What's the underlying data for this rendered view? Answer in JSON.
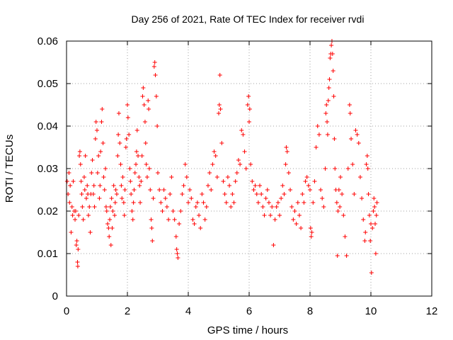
{
  "chart_data": {
    "type": "scatter",
    "title": "Day 256 of 2021, Rate Of TEC Index for receiver rvdi",
    "xlabel": "GPS time / hours",
    "ylabel": "ROTI / TECUs",
    "xlim": [
      0,
      12
    ],
    "ylim": [
      0,
      0.06
    ],
    "x_ticks": [
      "0",
      "2",
      "4",
      "6",
      "8",
      "10",
      "12"
    ],
    "y_ticks": [
      "0",
      "0.01",
      "0.02",
      "0.03",
      "0.04",
      "0.05",
      "0.06"
    ],
    "grid": true,
    "marker": "+",
    "color": "#ff0000",
    "series": [
      {
        "name": "ROTI",
        "points": [
          [
            0.02,
            0.027
          ],
          [
            0.05,
            0.024
          ],
          [
            0.08,
            0.029
          ],
          [
            0.1,
            0.022
          ],
          [
            0.12,
            0.026
          ],
          [
            0.15,
            0.015
          ],
          [
            0.18,
            0.021
          ],
          [
            0.2,
            0.019
          ],
          [
            0.22,
            0.027
          ],
          [
            0.25,
            0.02
          ],
          [
            0.28,
            0.018
          ],
          [
            0.3,
            0.02
          ],
          [
            0.32,
            0.012
          ],
          [
            0.34,
            0.013
          ],
          [
            0.36,
            0.008
          ],
          [
            0.37,
            0.007
          ],
          [
            0.38,
            0.011
          ],
          [
            0.4,
            0.019
          ],
          [
            0.42,
            0.033
          ],
          [
            0.44,
            0.034
          ],
          [
            0.46,
            0.031
          ],
          [
            0.48,
            0.027
          ],
          [
            0.5,
            0.024
          ],
          [
            0.52,
            0.021
          ],
          [
            0.55,
            0.018
          ],
          [
            0.58,
            0.028
          ],
          [
            0.6,
            0.025
          ],
          [
            0.62,
            0.033
          ],
          [
            0.65,
            0.023
          ],
          [
            0.68,
            0.026
          ],
          [
            0.7,
            0.024
          ],
          [
            0.72,
            0.019
          ],
          [
            0.75,
            0.021
          ],
          [
            0.78,
            0.015
          ],
          [
            0.8,
            0.024
          ],
          [
            0.82,
            0.029
          ],
          [
            0.85,
            0.032
          ],
          [
            0.88,
            0.024
          ],
          [
            0.9,
            0.026
          ],
          [
            0.92,
            0.021
          ],
          [
            0.95,
            0.037
          ],
          [
            0.97,
            0.041
          ],
          [
            1.0,
            0.039
          ],
          [
            1.02,
            0.029
          ],
          [
            1.05,
            0.033
          ],
          [
            1.08,
            0.023
          ],
          [
            1.1,
            0.026
          ],
          [
            1.12,
            0.034
          ],
          [
            1.15,
            0.041
          ],
          [
            1.17,
            0.044
          ],
          [
            1.2,
            0.036
          ],
          [
            1.22,
            0.028
          ],
          [
            1.25,
            0.025
          ],
          [
            1.28,
            0.03
          ],
          [
            1.3,
            0.021
          ],
          [
            1.32,
            0.02
          ],
          [
            1.35,
            0.017
          ],
          [
            1.38,
            0.016
          ],
          [
            1.4,
            0.014
          ],
          [
            1.42,
            0.018
          ],
          [
            1.44,
            0.021
          ],
          [
            1.46,
            0.012
          ],
          [
            1.48,
            0.023
          ],
          [
            1.5,
            0.016
          ],
          [
            1.52,
            0.02
          ],
          [
            1.55,
            0.026
          ],
          [
            1.58,
            0.019
          ],
          [
            1.6,
            0.022
          ],
          [
            1.62,
            0.025
          ],
          [
            1.65,
            0.024
          ],
          [
            1.68,
            0.033
          ],
          [
            1.7,
            0.038
          ],
          [
            1.72,
            0.043
          ],
          [
            1.75,
            0.036
          ],
          [
            1.78,
            0.031
          ],
          [
            1.8,
            0.026
          ],
          [
            1.82,
            0.023
          ],
          [
            1.85,
            0.028
          ],
          [
            1.88,
            0.022
          ],
          [
            1.9,
            0.019
          ],
          [
            1.92,
            0.025
          ],
          [
            1.95,
            0.035
          ],
          [
            1.97,
            0.037
          ],
          [
            2.0,
            0.045
          ],
          [
            2.02,
            0.042
          ],
          [
            2.05,
            0.038
          ],
          [
            2.08,
            0.03
          ],
          [
            2.1,
            0.027
          ],
          [
            2.12,
            0.024
          ],
          [
            2.15,
            0.02
          ],
          [
            2.18,
            0.018
          ],
          [
            2.2,
            0.022
          ],
          [
            2.22,
            0.025
          ],
          [
            2.25,
            0.029
          ],
          [
            2.28,
            0.031
          ],
          [
            2.3,
            0.034
          ],
          [
            2.32,
            0.039
          ],
          [
            2.35,
            0.033
          ],
          [
            2.38,
            0.028
          ],
          [
            2.4,
            0.026
          ],
          [
            2.42,
            0.022
          ],
          [
            2.45,
            0.027
          ],
          [
            2.48,
            0.033
          ],
          [
            2.5,
            0.047
          ],
          [
            2.52,
            0.049
          ],
          [
            2.55,
            0.045
          ],
          [
            2.58,
            0.041
          ],
          [
            2.6,
            0.036
          ],
          [
            2.62,
            0.031
          ],
          [
            2.65,
            0.028
          ],
          [
            2.68,
            0.046
          ],
          [
            2.7,
            0.044
          ],
          [
            2.72,
            0.03
          ],
          [
            2.75,
            0.025
          ],
          [
            2.78,
            0.018
          ],
          [
            2.8,
            0.016
          ],
          [
            2.82,
            0.013
          ],
          [
            2.85,
            0.023
          ],
          [
            2.88,
            0.054
          ],
          [
            2.9,
            0.055
          ],
          [
            2.92,
            0.052
          ],
          [
            2.95,
            0.047
          ],
          [
            2.98,
            0.04
          ],
          [
            3.0,
            0.029
          ],
          [
            3.05,
            0.025
          ],
          [
            3.1,
            0.022
          ],
          [
            3.15,
            0.02
          ],
          [
            3.2,
            0.025
          ],
          [
            3.25,
            0.023
          ],
          [
            3.3,
            0.021
          ],
          [
            3.35,
            0.018
          ],
          [
            3.4,
            0.024
          ],
          [
            3.45,
            0.028
          ],
          [
            3.5,
            0.02
          ],
          [
            3.55,
            0.018
          ],
          [
            3.6,
            0.014
          ],
          [
            3.62,
            0.011
          ],
          [
            3.64,
            0.01
          ],
          [
            3.66,
            0.009
          ],
          [
            3.7,
            0.017
          ],
          [
            3.75,
            0.02
          ],
          [
            3.8,
            0.024
          ],
          [
            3.85,
            0.026
          ],
          [
            3.9,
            0.031
          ],
          [
            3.95,
            0.028
          ],
          [
            4.0,
            0.022
          ],
          [
            4.05,
            0.025
          ],
          [
            4.1,
            0.023
          ],
          [
            4.15,
            0.018
          ],
          [
            4.2,
            0.017
          ],
          [
            4.25,
            0.021
          ],
          [
            4.3,
            0.022
          ],
          [
            4.35,
            0.019
          ],
          [
            4.4,
            0.016
          ],
          [
            4.45,
            0.024
          ],
          [
            4.5,
            0.022
          ],
          [
            4.55,
            0.018
          ],
          [
            4.6,
            0.021
          ],
          [
            4.65,
            0.026
          ],
          [
            4.7,
            0.029
          ],
          [
            4.75,
            0.025
          ],
          [
            4.8,
            0.031
          ],
          [
            4.85,
            0.034
          ],
          [
            4.9,
            0.033
          ],
          [
            4.95,
            0.028
          ],
          [
            5.0,
            0.043
          ],
          [
            5.02,
            0.045
          ],
          [
            5.04,
            0.052
          ],
          [
            5.06,
            0.044
          ],
          [
            5.1,
            0.036
          ],
          [
            5.15,
            0.027
          ],
          [
            5.2,
            0.024
          ],
          [
            5.25,
            0.022
          ],
          [
            5.3,
            0.028
          ],
          [
            5.35,
            0.026
          ],
          [
            5.4,
            0.021
          ],
          [
            5.45,
            0.024
          ],
          [
            5.5,
            0.022
          ],
          [
            5.55,
            0.027
          ],
          [
            5.6,
            0.029
          ],
          [
            5.65,
            0.032
          ],
          [
            5.7,
            0.031
          ],
          [
            5.75,
            0.039
          ],
          [
            5.8,
            0.038
          ],
          [
            5.85,
            0.034
          ],
          [
            5.9,
            0.03
          ],
          [
            5.95,
            0.045
          ],
          [
            5.98,
            0.047
          ],
          [
            6.0,
            0.041
          ],
          [
            6.02,
            0.044
          ],
          [
            6.05,
            0.031
          ],
          [
            6.1,
            0.027
          ],
          [
            6.15,
            0.025
          ],
          [
            6.2,
            0.026
          ],
          [
            6.25,
            0.024
          ],
          [
            6.3,
            0.022
          ],
          [
            6.35,
            0.026
          ],
          [
            6.4,
            0.024
          ],
          [
            6.45,
            0.021
          ],
          [
            6.5,
            0.019
          ],
          [
            6.55,
            0.023
          ],
          [
            6.6,
            0.025
          ],
          [
            6.65,
            0.022
          ],
          [
            6.7,
            0.019
          ],
          [
            6.75,
            0.021
          ],
          [
            6.8,
            0.012
          ],
          [
            6.85,
            0.018
          ],
          [
            6.9,
            0.021
          ],
          [
            6.95,
            0.022
          ],
          [
            7.0,
            0.019
          ],
          [
            7.05,
            0.023
          ],
          [
            7.1,
            0.026
          ],
          [
            7.15,
            0.024
          ],
          [
            7.2,
            0.031
          ],
          [
            7.22,
            0.035
          ],
          [
            7.25,
            0.034
          ],
          [
            7.3,
            0.029
          ],
          [
            7.35,
            0.025
          ],
          [
            7.4,
            0.021
          ],
          [
            7.45,
            0.018
          ],
          [
            7.5,
            0.02
          ],
          [
            7.55,
            0.017
          ],
          [
            7.6,
            0.022
          ],
          [
            7.65,
            0.019
          ],
          [
            7.7,
            0.016
          ],
          [
            7.75,
            0.024
          ],
          [
            7.8,
            0.022
          ],
          [
            7.85,
            0.027
          ],
          [
            7.9,
            0.028
          ],
          [
            7.95,
            0.026
          ],
          [
            8.0,
            0.025
          ],
          [
            8.02,
            0.016
          ],
          [
            8.04,
            0.014
          ],
          [
            8.06,
            0.015
          ],
          [
            8.1,
            0.022
          ],
          [
            8.15,
            0.027
          ],
          [
            8.2,
            0.035
          ],
          [
            8.25,
            0.04
          ],
          [
            8.3,
            0.038
          ],
          [
            8.35,
            0.025
          ],
          [
            8.4,
            0.023
          ],
          [
            8.45,
            0.021
          ],
          [
            8.5,
            0.03
          ],
          [
            8.52,
            0.043
          ],
          [
            8.54,
            0.045
          ],
          [
            8.56,
            0.041
          ],
          [
            8.58,
            0.038
          ],
          [
            8.6,
            0.046
          ],
          [
            8.62,
            0.049
          ],
          [
            8.64,
            0.051
          ],
          [
            8.66,
            0.056
          ],
          [
            8.68,
            0.057
          ],
          [
            8.7,
            0.059
          ],
          [
            8.72,
            0.06
          ],
          [
            8.74,
            0.057
          ],
          [
            8.76,
            0.053
          ],
          [
            8.78,
            0.047
          ],
          [
            8.8,
            0.037
          ],
          [
            8.82,
            0.03
          ],
          [
            8.85,
            0.025
          ],
          [
            8.88,
            0.022
          ],
          [
            8.9,
            0.0095
          ],
          [
            8.92,
            0.02
          ],
          [
            8.95,
            0.025
          ],
          [
            8.98,
            0.021
          ],
          [
            9.0,
            0.028
          ],
          [
            9.05,
            0.024
          ],
          [
            9.1,
            0.019
          ],
          [
            9.15,
            0.014
          ],
          [
            9.2,
            0.0095
          ],
          [
            9.25,
            0.03
          ],
          [
            9.3,
            0.045
          ],
          [
            9.32,
            0.043
          ],
          [
            9.35,
            0.037
          ],
          [
            9.4,
            0.031
          ],
          [
            9.45,
            0.024
          ],
          [
            9.5,
            0.039
          ],
          [
            9.55,
            0.038
          ],
          [
            9.6,
            0.036
          ],
          [
            9.65,
            0.028
          ],
          [
            9.7,
            0.023
          ],
          [
            9.75,
            0.018
          ],
          [
            9.8,
            0.013
          ],
          [
            9.82,
            0.015
          ],
          [
            9.85,
            0.031
          ],
          [
            9.88,
            0.033
          ],
          [
            9.9,
            0.03
          ],
          [
            9.92,
            0.024
          ],
          [
            9.95,
            0.019
          ],
          [
            9.98,
            0.013
          ],
          [
            10.0,
            0.017
          ],
          [
            10.02,
            0.0055
          ],
          [
            10.05,
            0.016
          ],
          [
            10.08,
            0.02
          ],
          [
            10.1,
            0.023
          ],
          [
            10.12,
            0.021
          ],
          [
            10.14,
            0.017
          ],
          [
            10.16,
            0.01
          ],
          [
            10.18,
            0.019
          ],
          [
            10.2,
            0.022
          ]
        ]
      }
    ]
  }
}
